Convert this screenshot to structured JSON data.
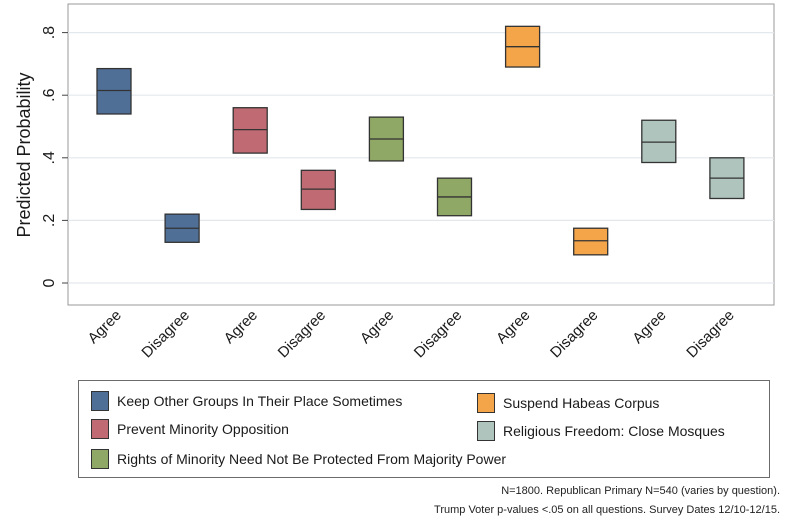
{
  "chart_data": {
    "type": "box-interval",
    "title": "",
    "ylabel": "Predicted Probability",
    "xlabel": "",
    "ylim": [
      0,
      0.85
    ],
    "yticks": [
      {
        "value": 0,
        "label": "0"
      },
      {
        "value": 0.2,
        "label": ".2"
      },
      {
        "value": 0.4,
        "label": ".4"
      },
      {
        "value": 0.6,
        "label": ".6"
      },
      {
        "value": 0.8,
        "label": ".8"
      }
    ],
    "grid": true,
    "categories": [
      "Agree",
      "Disagree",
      "Agree",
      "Disagree",
      "Agree",
      "Disagree",
      "Agree",
      "Disagree",
      "Agree",
      "Disagree"
    ],
    "series": [
      {
        "name": "Keep Other Groups In Their Place Sometimes",
        "color": "#4f6f97",
        "points": [
          {
            "cat": 0,
            "low": 0.54,
            "mid": 0.615,
            "high": 0.685
          },
          {
            "cat": 1,
            "low": 0.13,
            "mid": 0.175,
            "high": 0.22
          }
        ]
      },
      {
        "name": "Prevent Minority Opposition",
        "color": "#c06b73",
        "points": [
          {
            "cat": 2,
            "low": 0.415,
            "mid": 0.49,
            "high": 0.56
          },
          {
            "cat": 3,
            "low": 0.235,
            "mid": 0.3,
            "high": 0.36
          }
        ]
      },
      {
        "name": "Rights of Minority Need Not Be Protected From Majority Power",
        "color": "#8fa865",
        "points": [
          {
            "cat": 4,
            "low": 0.39,
            "mid": 0.46,
            "high": 0.53
          },
          {
            "cat": 5,
            "low": 0.215,
            "mid": 0.275,
            "high": 0.335
          }
        ]
      },
      {
        "name": "Suspend Habeas Corpus",
        "color": "#f4a54a",
        "points": [
          {
            "cat": 6,
            "low": 0.69,
            "mid": 0.755,
            "high": 0.82
          },
          {
            "cat": 7,
            "low": 0.09,
            "mid": 0.135,
            "high": 0.175
          }
        ]
      },
      {
        "name": "Religious Freedom: Close Mosques",
        "color": "#aec4bd",
        "points": [
          {
            "cat": 8,
            "low": 0.385,
            "mid": 0.45,
            "high": 0.52
          },
          {
            "cat": 9,
            "low": 0.27,
            "mid": 0.335,
            "high": 0.4
          }
        ]
      }
    ],
    "legend_placement": "bottom"
  },
  "legend": [
    {
      "label": "Keep Other Groups In Their Place Sometimes",
      "color": "#4f6f97"
    },
    {
      "label": "Suspend Habeas Corpus",
      "color": "#f4a54a"
    },
    {
      "label": "Prevent Minority Opposition",
      "color": "#c06b73"
    },
    {
      "label": "Religious Freedom: Close Mosques",
      "color": "#aec4bd"
    },
    {
      "label": "Rights of Minority Need Not Be Protected From Majority Power",
      "color": "#8fa865"
    }
  ],
  "notes": {
    "line1": "N=1800. Republican Primary N=540 (varies by question).",
    "line2": "Trump Voter p-values <.05 on all questions. Survey Dates 12/10-12/15."
  }
}
